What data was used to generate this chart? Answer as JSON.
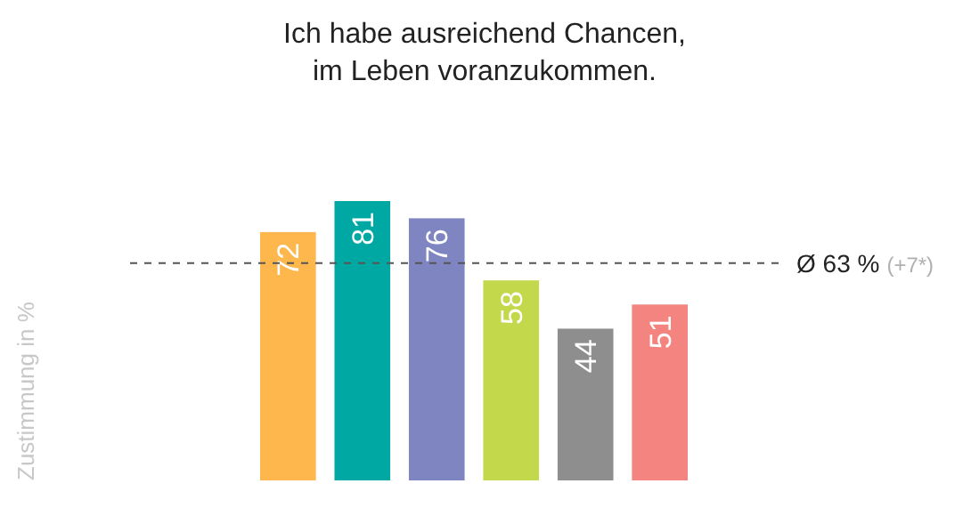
{
  "chart_data": {
    "type": "bar",
    "title": "Ich habe ausreichend Chancen,\nim Leben voranzukommen.",
    "categories": [
      null,
      null,
      null,
      null,
      null,
      null
    ],
    "values": [
      72,
      81,
      76,
      58,
      44,
      51
    ],
    "colors": [
      "#fdb74d",
      "#00a8a4",
      "#7e85c1",
      "#c3d84a",
      "#8e8e8e",
      "#f3847f"
    ],
    "ylim": [
      0,
      81
    ],
    "data_labels": true,
    "ref_lines": [
      {
        "axis": "y",
        "value": 63,
        "label": "Ø 63 %",
        "line_style": "dashed",
        "color": "#555555"
      }
    ],
    "annotations": [
      "(+7*)",
      "Zustimmung in %"
    ]
  }
}
